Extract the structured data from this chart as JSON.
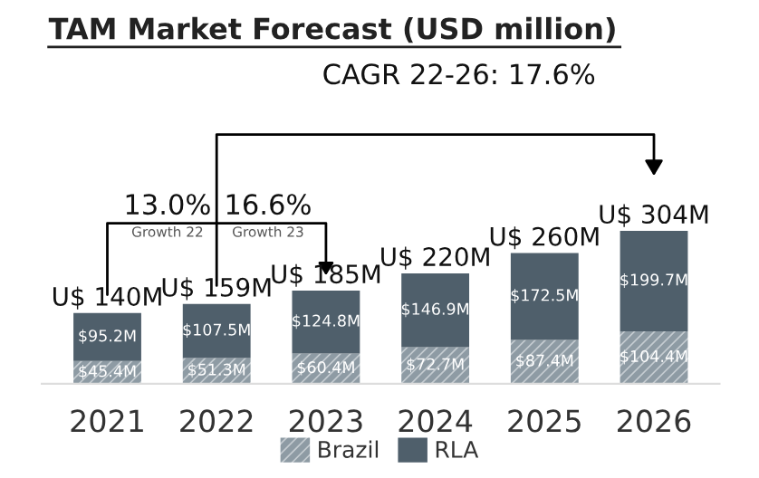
{
  "chart_data": {
    "type": "bar",
    "title": "TAM Market Forecast (USD million)",
    "subtitle": "CAGR 22-26: 17.6%",
    "categories": [
      "2021",
      "2022",
      "2023",
      "2024",
      "2025",
      "2026"
    ],
    "stacked": true,
    "series": [
      {
        "name": "Brazil",
        "color": "#8e9ba4",
        "values": [
          45.4,
          51.3,
          60.4,
          72.7,
          87.4,
          104.4
        ],
        "value_labels": [
          "$45.4M",
          "$51.3M",
          "$60.4M",
          "$72.7M",
          "$87.4M",
          "$104.4M"
        ]
      },
      {
        "name": "RLA",
        "color": "#4f5f6b",
        "values": [
          95.2,
          107.5,
          124.8,
          146.9,
          172.5,
          199.7
        ],
        "value_labels": [
          "$95.2M",
          "$107.5M",
          "$124.8M",
          "$146.9M",
          "$172.5M",
          "$199.7M"
        ]
      }
    ],
    "totals": [
      "U$ 140M",
      "U$ 159M",
      "U$ 185M",
      "U$ 220M",
      "U$ 260M",
      "U$ 304M"
    ],
    "annotations": [
      "13.0%",
      "Growth 22",
      "16.6%",
      "Growth 23"
    ],
    "legend": "bottom",
    "grid": false
  }
}
